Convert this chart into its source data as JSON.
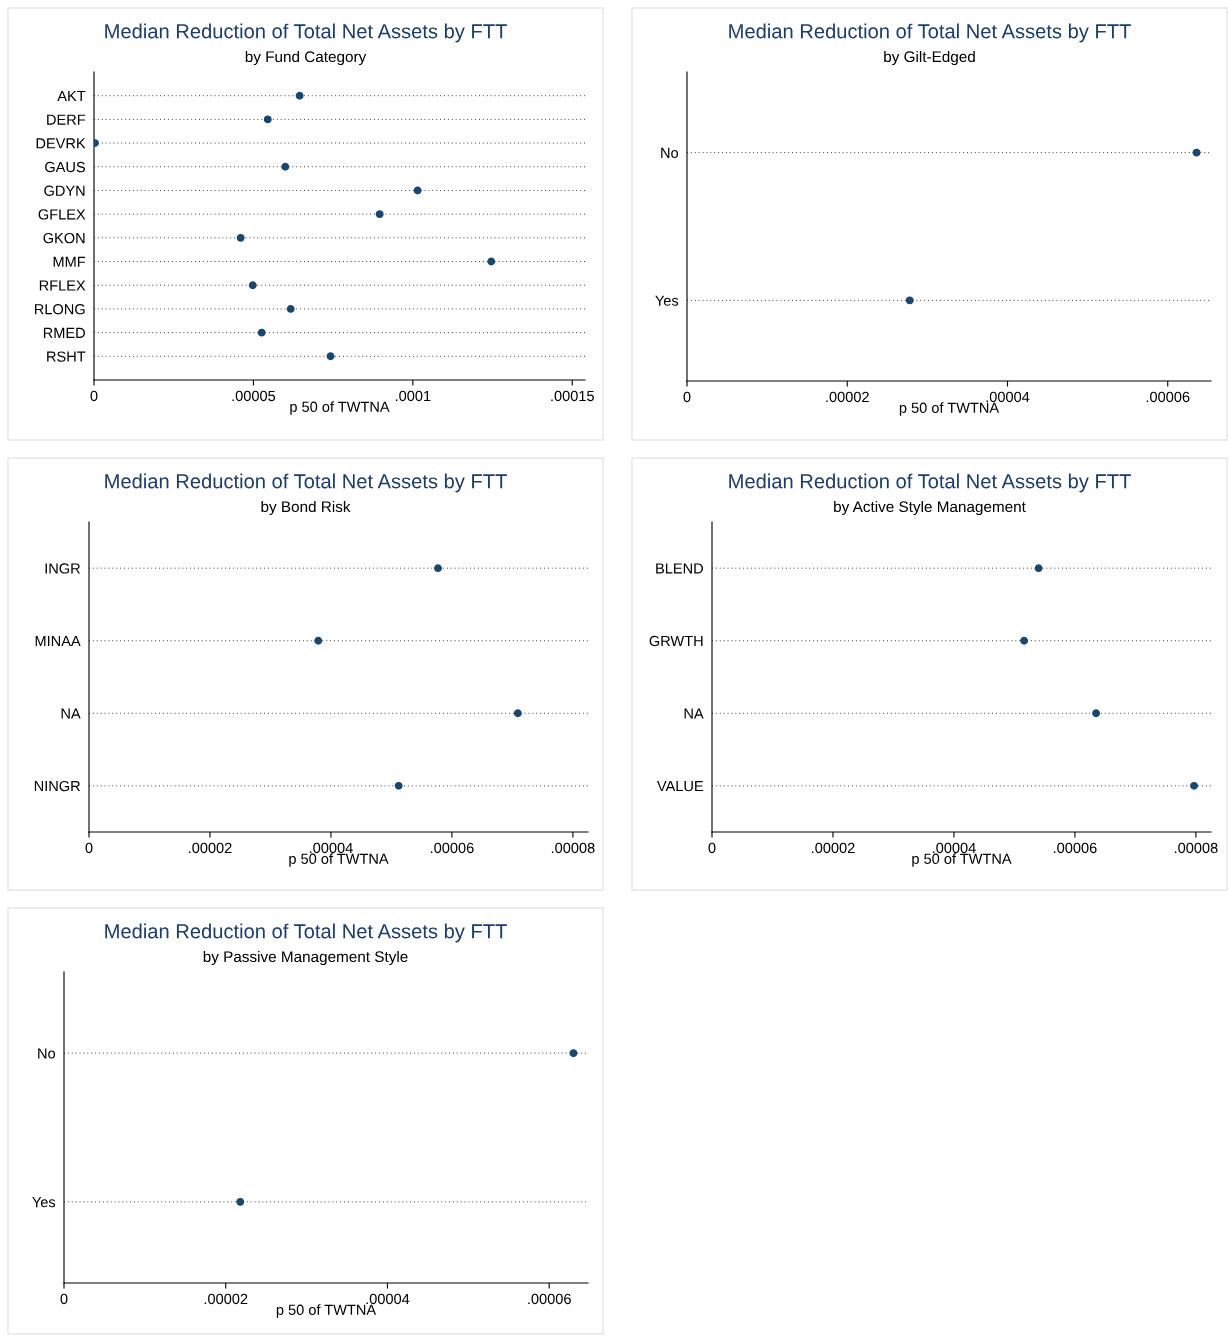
{
  "chart_data": [
    {
      "type": "scatter",
      "title": "Median Reduction of Total Net Assets by FTT",
      "subtitle": "by Fund Category",
      "xlabel": "p 50 of TWTNA",
      "categories": [
        "AKT",
        "DERF",
        "DEVRK",
        "GAUS",
        "GDYN",
        "GFLEX",
        "GKON",
        "MMF",
        "RFLEX",
        "RLONG",
        "RMED",
        "RSHT"
      ],
      "orientation": "horizontal",
      "values": [
        6.45e-05,
        5.45e-05,
        3e-07,
        6e-05,
        0.0001015,
        8.96e-05,
        4.6e-05,
        0.0001246,
        4.98e-05,
        6.17e-05,
        5.26e-05,
        7.42e-05
      ],
      "color": "#1a476f",
      "marker": "circle",
      "grid": "y",
      "xlim": [
        0,
        0.000154
      ],
      "xticks": [
        {
          "value": 0,
          "label": "0"
        },
        {
          "value": 5e-05,
          "label": ".00005"
        },
        {
          "value": 0.0001,
          "label": ".0001"
        },
        {
          "value": 0.00015,
          "label": ".00015"
        }
      ]
    },
    {
      "type": "scatter",
      "title": "Median Reduction of Total Net Assets by FTT",
      "subtitle": "by Gilt-Edged",
      "xlabel": "p 50 of TWTNA",
      "categories": [
        "No",
        "Yes"
      ],
      "orientation": "horizontal",
      "values": [
        6.36e-05,
        2.78e-05
      ],
      "color": "#1a476f",
      "marker": "circle",
      "grid": "y",
      "xlim": [
        0,
        6.54e-05
      ],
      "xticks": [
        {
          "value": 0,
          "label": "0"
        },
        {
          "value": 2e-05,
          "label": ".00002"
        },
        {
          "value": 4e-05,
          "label": ".00004"
        },
        {
          "value": 6e-05,
          "label": ".00006"
        }
      ]
    },
    {
      "type": "scatter",
      "title": "Median Reduction of Total Net Assets by FTT",
      "subtitle": "by Bond Risk",
      "xlabel": "p 50 of TWTNA",
      "categories": [
        "INGR",
        "MINAA",
        "NA",
        "NINGR"
      ],
      "orientation": "horizontal",
      "values": [
        5.77e-05,
        3.79e-05,
        7.09e-05,
        5.12e-05
      ],
      "color": "#1a476f",
      "marker": "circle",
      "grid": "y",
      "xlim": [
        0,
        8.25e-05
      ],
      "xticks": [
        {
          "value": 0,
          "label": "0"
        },
        {
          "value": 2e-05,
          "label": ".00002"
        },
        {
          "value": 4e-05,
          "label": ".00004"
        },
        {
          "value": 6e-05,
          "label": ".00006"
        },
        {
          "value": 8e-05,
          "label": ".00008"
        }
      ]
    },
    {
      "type": "scatter",
      "title": "Median Reduction of Total Net Assets by FTT",
      "subtitle": "by Active Style Management",
      "xlabel": "p 50 of TWTNA",
      "categories": [
        "BLEND",
        "GRWTH",
        "NA",
        "VALUE"
      ],
      "orientation": "horizontal",
      "values": [
        5.4e-05,
        5.16e-05,
        6.35e-05,
        7.97e-05
      ],
      "color": "#1a476f",
      "marker": "circle",
      "grid": "y",
      "xlim": [
        0,
        8.25e-05
      ],
      "xticks": [
        {
          "value": 0,
          "label": "0"
        },
        {
          "value": 2e-05,
          "label": ".00002"
        },
        {
          "value": 4e-05,
          "label": ".00004"
        },
        {
          "value": 6e-05,
          "label": ".00006"
        },
        {
          "value": 8e-05,
          "label": ".00008"
        }
      ]
    },
    {
      "type": "scatter",
      "title": "Median Reduction of Total Net Assets by FTT",
      "subtitle": "by Passive Management Style",
      "xlabel": "p 50 of TWTNA",
      "categories": [
        "No",
        "Yes"
      ],
      "orientation": "horizontal",
      "values": [
        6.3e-05,
        2.18e-05
      ],
      "color": "#1a476f",
      "marker": "circle",
      "grid": "y",
      "xlim": [
        0,
        6.48e-05
      ],
      "xticks": [
        {
          "value": 0,
          "label": "0"
        },
        {
          "value": 2e-05,
          "label": ".00002"
        },
        {
          "value": 4e-05,
          "label": ".00004"
        },
        {
          "value": 6e-05,
          "label": ".00006"
        }
      ]
    }
  ]
}
